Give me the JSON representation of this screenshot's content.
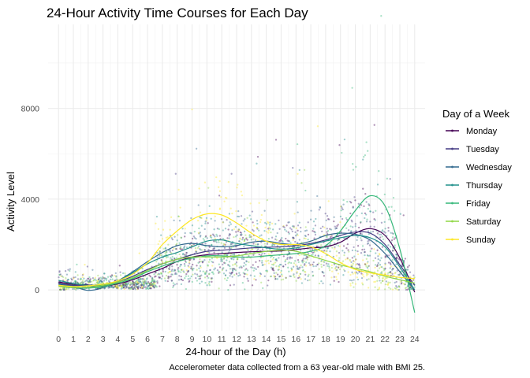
{
  "chart_data": {
    "type": "scatter",
    "title": "24-Hour Activity Time Courses for Each Day",
    "xlabel": "24-hour of the Day (h)",
    "ylabel": "Activity Level",
    "caption": "Accelerometer data collected from a 63 year-old male with BMI 25.",
    "xlim": [
      -0.7,
      24.7
    ],
    "ylim": [
      -1800,
      11700
    ],
    "x_ticks": [
      "0",
      "1",
      "2",
      "3",
      "4",
      "5",
      "6",
      "7",
      "8",
      "9",
      "10",
      "11",
      "12",
      "13",
      "14",
      "15",
      "16",
      "17",
      "18",
      "19",
      "20",
      "21",
      "22",
      "23",
      "24"
    ],
    "y_ticks": [
      0,
      4000,
      8000
    ],
    "y_tick_labels": [
      "0",
      "4000",
      "8000"
    ],
    "grid": true,
    "legend": {
      "title": "Day of a Week",
      "position": "right"
    },
    "series": [
      {
        "name": "Monday",
        "color": "#440154",
        "smooth": [
          [
            0,
            350
          ],
          [
            1,
            250
          ],
          [
            2,
            220
          ],
          [
            3,
            170
          ],
          [
            4,
            260
          ],
          [
            5,
            450
          ],
          [
            6,
            700
          ],
          [
            7,
            950
          ],
          [
            8,
            1250
          ],
          [
            9,
            1450
          ],
          [
            10,
            1550
          ],
          [
            11,
            1600
          ],
          [
            12,
            1650
          ],
          [
            13,
            1680
          ],
          [
            14,
            1700
          ],
          [
            15,
            1720
          ],
          [
            16,
            1780
          ],
          [
            17,
            1850
          ],
          [
            18,
            1900
          ],
          [
            19,
            2100
          ],
          [
            20,
            2500
          ],
          [
            21,
            2700
          ],
          [
            22,
            2400
          ],
          [
            23,
            1400
          ],
          [
            24,
            -100
          ]
        ]
      },
      {
        "name": "Tuesday",
        "color": "#443A83",
        "smooth": [
          [
            0,
            300
          ],
          [
            1,
            200
          ],
          [
            2,
            180
          ],
          [
            3,
            200
          ],
          [
            4,
            350
          ],
          [
            5,
            600
          ],
          [
            6,
            900
          ],
          [
            7,
            1150
          ],
          [
            8,
            1350
          ],
          [
            9,
            1550
          ],
          [
            10,
            1700
          ],
          [
            11,
            1750
          ],
          [
            12,
            1800
          ],
          [
            13,
            1850
          ],
          [
            14,
            1880
          ],
          [
            15,
            1900
          ],
          [
            16,
            1950
          ],
          [
            17,
            2050
          ],
          [
            18,
            2200
          ],
          [
            19,
            2400
          ],
          [
            20,
            2550
          ],
          [
            21,
            2500
          ],
          [
            22,
            2000
          ],
          [
            23,
            1100
          ],
          [
            24,
            200
          ]
        ]
      },
      {
        "name": "Wednesday",
        "color": "#31688E",
        "smooth": [
          [
            0,
            250
          ],
          [
            1,
            150
          ],
          [
            2,
            -20
          ],
          [
            3,
            100
          ],
          [
            4,
            400
          ],
          [
            5,
            800
          ],
          [
            6,
            1250
          ],
          [
            7,
            1650
          ],
          [
            8,
            1950
          ],
          [
            9,
            2050
          ],
          [
            10,
            1950
          ],
          [
            11,
            1900
          ],
          [
            12,
            1950
          ],
          [
            13,
            2100
          ],
          [
            14,
            2150
          ],
          [
            15,
            2050
          ],
          [
            16,
            2000
          ],
          [
            17,
            2150
          ],
          [
            18,
            2400
          ],
          [
            19,
            2500
          ],
          [
            20,
            2450
          ],
          [
            21,
            2200
          ],
          [
            22,
            1600
          ],
          [
            23,
            800
          ],
          [
            24,
            0
          ]
        ]
      },
      {
        "name": "Thursday",
        "color": "#21908C",
        "smooth": [
          [
            0,
            420
          ],
          [
            1,
            280
          ],
          [
            2,
            200
          ],
          [
            3,
            220
          ],
          [
            4,
            400
          ],
          [
            5,
            750
          ],
          [
            6,
            1150
          ],
          [
            7,
            1450
          ],
          [
            8,
            1650
          ],
          [
            9,
            1900
          ],
          [
            10,
            2150
          ],
          [
            11,
            2200
          ],
          [
            12,
            2050
          ],
          [
            13,
            1950
          ],
          [
            14,
            1850
          ],
          [
            15,
            1800
          ],
          [
            16,
            1850
          ],
          [
            17,
            2000
          ],
          [
            18,
            2150
          ],
          [
            19,
            2300
          ],
          [
            20,
            2400
          ],
          [
            21,
            2300
          ],
          [
            22,
            1900
          ],
          [
            23,
            1000
          ],
          [
            24,
            0
          ]
        ]
      },
      {
        "name": "Friday",
        "color": "#35B779",
        "smooth": [
          [
            0,
            200
          ],
          [
            1,
            100
          ],
          [
            2,
            80
          ],
          [
            3,
            150
          ],
          [
            4,
            300
          ],
          [
            5,
            500
          ],
          [
            6,
            800
          ],
          [
            7,
            1050
          ],
          [
            8,
            1250
          ],
          [
            9,
            1400
          ],
          [
            10,
            1500
          ],
          [
            11,
            1500
          ],
          [
            12,
            1450
          ],
          [
            13,
            1450
          ],
          [
            14,
            1500
          ],
          [
            15,
            1550
          ],
          [
            16,
            1600
          ],
          [
            17,
            1700
          ],
          [
            18,
            1950
          ],
          [
            19,
            2600
          ],
          [
            20,
            3500
          ],
          [
            21,
            4150
          ],
          [
            22,
            3700
          ],
          [
            23,
            1800
          ],
          [
            24,
            -1000
          ]
        ]
      },
      {
        "name": "Saturday",
        "color": "#8FD744",
        "smooth": [
          [
            0,
            150
          ],
          [
            1,
            100
          ],
          [
            2,
            120
          ],
          [
            3,
            200
          ],
          [
            4,
            350
          ],
          [
            5,
            550
          ],
          [
            6,
            850
          ],
          [
            7,
            1150
          ],
          [
            8,
            1350
          ],
          [
            9,
            1450
          ],
          [
            10,
            1450
          ],
          [
            11,
            1450
          ],
          [
            12,
            1500
          ],
          [
            13,
            1600
          ],
          [
            14,
            1700
          ],
          [
            15,
            1750
          ],
          [
            16,
            1700
          ],
          [
            17,
            1500
          ],
          [
            18,
            1300
          ],
          [
            19,
            1100
          ],
          [
            20,
            950
          ],
          [
            21,
            800
          ],
          [
            22,
            600
          ],
          [
            23,
            450
          ],
          [
            24,
            300
          ]
        ]
      },
      {
        "name": "Sunday",
        "color": "#FDE725",
        "smooth": [
          [
            0,
            200
          ],
          [
            1,
            150
          ],
          [
            2,
            180
          ],
          [
            3,
            250
          ],
          [
            4,
            400
          ],
          [
            5,
            700
          ],
          [
            6,
            1200
          ],
          [
            7,
            2000
          ],
          [
            8,
            2600
          ],
          [
            9,
            3100
          ],
          [
            10,
            3350
          ],
          [
            11,
            3300
          ],
          [
            12,
            2950
          ],
          [
            13,
            2500
          ],
          [
            14,
            2150
          ],
          [
            15,
            2000
          ],
          [
            16,
            2000
          ],
          [
            17,
            1900
          ],
          [
            18,
            1600
          ],
          [
            19,
            1200
          ],
          [
            20,
            900
          ],
          [
            21,
            750
          ],
          [
            22,
            650
          ],
          [
            23,
            550
          ],
          [
            24,
            500
          ]
        ]
      }
    ]
  }
}
